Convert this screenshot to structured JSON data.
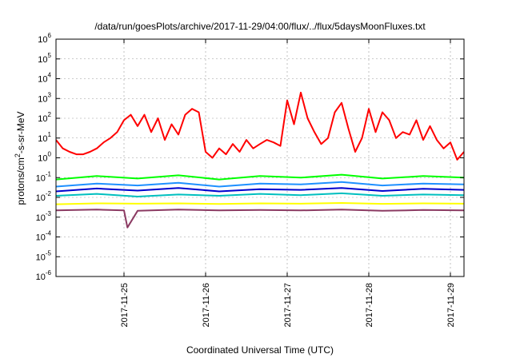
{
  "chart_data": {
    "type": "line",
    "title": "/data/run/goesPlots/archive/2017-11-29/04:00/flux/../flux/5daysMoonFluxes.txt",
    "xlabel": "Coordinated Universal Time (UTC)",
    "ylabel_base": "protons/cm",
    "ylabel_sup": "2",
    "ylabel_rest": "-s-sr-MeV",
    "yscale": "log",
    "ylim_exponents": [
      -6,
      6
    ],
    "xlim": [
      "2017-11-24T04:00",
      "2017-11-29T04:00"
    ],
    "y_tick_exponents": [
      -6,
      -5,
      -4,
      -3,
      -2,
      -1,
      0,
      1,
      2,
      3,
      4,
      5,
      6
    ],
    "y_tick_base": "10",
    "x_ticks": [
      "2017-11-25",
      "2017-11-26",
      "2017-11-27",
      "2017-11-28",
      "2017-11-29"
    ],
    "grid": true,
    "legend": "none",
    "series": [
      {
        "color": "#ff0000",
        "x": [
          "2017-11-24T04:00",
          "2017-11-24T06:00",
          "2017-11-24T08:00",
          "2017-11-24T10:00",
          "2017-11-24T12:00",
          "2017-11-24T14:00",
          "2017-11-24T16:00",
          "2017-11-24T18:00",
          "2017-11-24T20:00",
          "2017-11-24T22:00",
          "2017-11-25T00:00",
          "2017-11-25T02:00",
          "2017-11-25T04:00",
          "2017-11-25T06:00",
          "2017-11-25T08:00",
          "2017-11-25T10:00",
          "2017-11-25T12:00",
          "2017-11-25T14:00",
          "2017-11-25T16:00",
          "2017-11-25T18:00",
          "2017-11-25T20:00",
          "2017-11-25T22:00",
          "2017-11-26T00:00",
          "2017-11-26T02:00",
          "2017-11-26T04:00",
          "2017-11-26T06:00",
          "2017-11-26T08:00",
          "2017-11-26T10:00",
          "2017-11-26T12:00",
          "2017-11-26T14:00",
          "2017-11-26T16:00",
          "2017-11-26T18:00",
          "2017-11-26T20:00",
          "2017-11-26T22:00",
          "2017-11-27T00:00",
          "2017-11-27T02:00",
          "2017-11-27T04:00",
          "2017-11-27T06:00",
          "2017-11-27T08:00",
          "2017-11-27T10:00",
          "2017-11-27T12:00",
          "2017-11-27T14:00",
          "2017-11-27T16:00",
          "2017-11-27T18:00",
          "2017-11-27T20:00",
          "2017-11-27T22:00",
          "2017-11-28T00:00",
          "2017-11-28T02:00",
          "2017-11-28T04:00",
          "2017-11-28T06:00",
          "2017-11-28T08:00",
          "2017-11-28T10:00",
          "2017-11-28T12:00",
          "2017-11-28T14:00",
          "2017-11-28T16:00",
          "2017-11-28T18:00",
          "2017-11-28T20:00",
          "2017-11-28T22:00",
          "2017-11-29T00:00",
          "2017-11-29T02:00",
          "2017-11-29T04:00"
        ],
        "y": [
          8,
          3,
          2,
          1.5,
          1.5,
          2,
          3,
          6,
          10,
          20,
          80,
          150,
          40,
          150,
          20,
          100,
          8,
          50,
          15,
          150,
          300,
          200,
          2,
          1,
          3,
          1.5,
          5,
          2,
          8,
          3,
          5,
          8,
          6,
          4,
          800,
          50,
          2000,
          100,
          20,
          5,
          10,
          200,
          600,
          30,
          2,
          10,
          300,
          20,
          200,
          80,
          10,
          20,
          15,
          80,
          8,
          40,
          8,
          3,
          6,
          0.8,
          2
        ]
      },
      {
        "color": "#00ff00",
        "x": [
          "2017-11-24T04:00",
          "2017-11-24T16:00",
          "2017-11-25T04:00",
          "2017-11-25T16:00",
          "2017-11-26T04:00",
          "2017-11-26T16:00",
          "2017-11-27T04:00",
          "2017-11-27T16:00",
          "2017-11-28T04:00",
          "2017-11-28T16:00",
          "2017-11-29T04:00"
        ],
        "y": [
          0.08,
          0.12,
          0.09,
          0.13,
          0.08,
          0.12,
          0.1,
          0.14,
          0.09,
          0.12,
          0.1
        ]
      },
      {
        "color": "#1e90ff",
        "x": [
          "2017-11-24T04:00",
          "2017-11-24T16:00",
          "2017-11-25T04:00",
          "2017-11-25T16:00",
          "2017-11-26T04:00",
          "2017-11-26T16:00",
          "2017-11-27T04:00",
          "2017-11-27T16:00",
          "2017-11-28T04:00",
          "2017-11-28T16:00",
          "2017-11-29T04:00"
        ],
        "y": [
          0.035,
          0.05,
          0.04,
          0.055,
          0.035,
          0.05,
          0.045,
          0.06,
          0.04,
          0.05,
          0.045
        ]
      },
      {
        "color": "#0000cd",
        "x": [
          "2017-11-24T04:00",
          "2017-11-24T16:00",
          "2017-11-25T04:00",
          "2017-11-25T16:00",
          "2017-11-26T04:00",
          "2017-11-26T16:00",
          "2017-11-27T04:00",
          "2017-11-27T16:00",
          "2017-11-28T04:00",
          "2017-11-28T16:00",
          "2017-11-29T04:00"
        ],
        "y": [
          0.02,
          0.028,
          0.022,
          0.03,
          0.02,
          0.026,
          0.024,
          0.03,
          0.021,
          0.027,
          0.024
        ]
      },
      {
        "color": "#00bfbf",
        "x": [
          "2017-11-24T04:00",
          "2017-11-24T16:00",
          "2017-11-25T04:00",
          "2017-11-25T16:00",
          "2017-11-26T04:00",
          "2017-11-26T16:00",
          "2017-11-27T04:00",
          "2017-11-27T16:00",
          "2017-11-28T04:00",
          "2017-11-28T16:00",
          "2017-11-29T04:00"
        ],
        "y": [
          0.012,
          0.015,
          0.011,
          0.014,
          0.012,
          0.015,
          0.013,
          0.016,
          0.012,
          0.014,
          0.013
        ]
      },
      {
        "color": "#ffff00",
        "x": [
          "2017-11-24T04:00",
          "2017-11-24T16:00",
          "2017-11-25T04:00",
          "2017-11-25T16:00",
          "2017-11-26T04:00",
          "2017-11-26T16:00",
          "2017-11-27T04:00",
          "2017-11-27T16:00",
          "2017-11-28T04:00",
          "2017-11-28T16:00",
          "2017-11-29T04:00"
        ],
        "y": [
          0.0045,
          0.005,
          0.0048,
          0.005,
          0.0046,
          0.005,
          0.0048,
          0.0052,
          0.0047,
          0.005,
          0.0048
        ]
      },
      {
        "color": "#8b3a62",
        "x": [
          "2017-11-24T04:00",
          "2017-11-24T16:00",
          "2017-11-25T00:00",
          "2017-11-25T01:00",
          "2017-11-25T04:00",
          "2017-11-25T16:00",
          "2017-11-26T04:00",
          "2017-11-26T16:00",
          "2017-11-27T04:00",
          "2017-11-27T16:00",
          "2017-11-28T04:00",
          "2017-11-28T16:00",
          "2017-11-29T04:00"
        ],
        "y": [
          0.0022,
          0.0024,
          0.0022,
          0.0003,
          0.0021,
          0.0024,
          0.0022,
          0.0023,
          0.0022,
          0.0024,
          0.0021,
          0.0023,
          0.0022
        ]
      }
    ]
  }
}
